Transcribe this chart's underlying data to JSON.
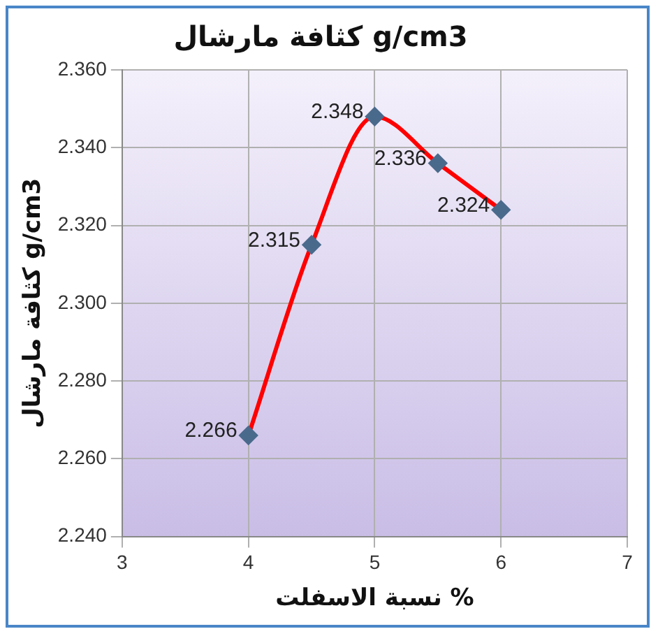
{
  "chart_data": {
    "type": "line",
    "title": "كثافة مارشال g/cm3",
    "xlabel": "نسبة الاسفلت %",
    "ylabel": "كثافة مارشال g/cm3",
    "x": [
      4,
      4.5,
      5,
      5.5,
      6
    ],
    "series": [
      {
        "color": "#ff0000",
        "values": [
          2.266,
          2.315,
          2.348,
          2.336,
          2.324
        ]
      }
    ],
    "xlim": [
      3,
      7
    ],
    "xticks": [
      3,
      4,
      5,
      6,
      7
    ],
    "ylim": [
      2.24,
      2.36
    ],
    "yticks": [
      {
        "value": 2.24,
        "label": "2.240"
      },
      {
        "value": 2.26,
        "label": "2.260"
      },
      {
        "value": 2.28,
        "label": "2.280"
      },
      {
        "value": 2.3,
        "label": "2.300"
      },
      {
        "value": 2.32,
        "label": "2.320"
      },
      {
        "value": 2.34,
        "label": "2.340"
      },
      {
        "value": 2.36,
        "label": "2.360"
      }
    ],
    "grid": true,
    "legend": false,
    "marker": "diamond",
    "line_style": "solid",
    "data_labels": true
  }
}
